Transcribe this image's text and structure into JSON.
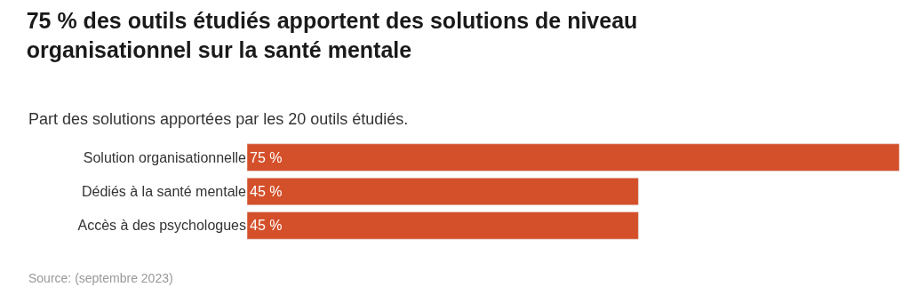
{
  "chart_data": {
    "type": "bar",
    "orientation": "horizontal",
    "title": "75 % des outils étudiés apportent des solutions de niveau organisationnel sur la santé mentale",
    "subtitle": "Part des solutions apportées par les 20 outils étudiés.",
    "categories": [
      "Solution organisationnelle",
      "Dédiés à la santé mentale",
      "Accès à des psychologues"
    ],
    "values": [
      75,
      45,
      45
    ],
    "value_labels": [
      "75 %",
      "45 %",
      "45 %"
    ],
    "color": "#d4502a",
    "xlim": [
      0,
      75
    ],
    "tick_labels": "y",
    "legend": false,
    "annotations": [
      "Source: (septembre 2023)"
    ]
  }
}
